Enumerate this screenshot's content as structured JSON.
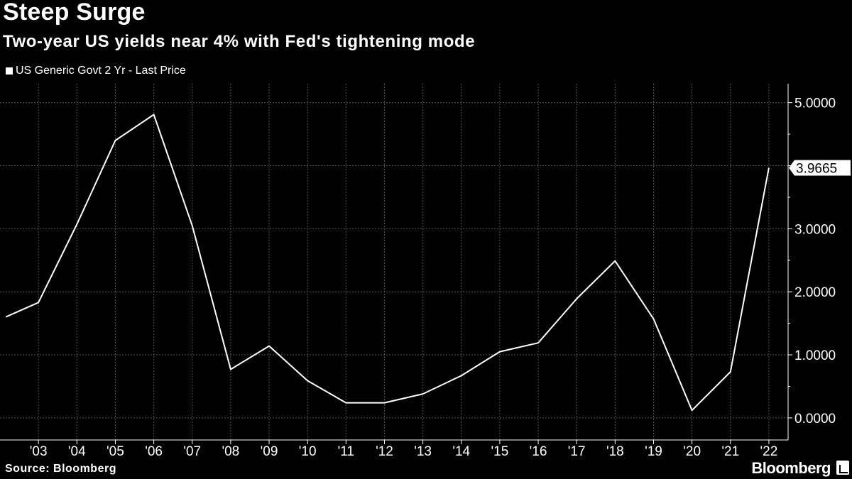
{
  "header": {
    "title": "Steep Surge",
    "subtitle": "Two-year US yields near 4% with Fed's tightening mode"
  },
  "legend": {
    "label": "US Generic Govt 2 Yr - Last Price"
  },
  "footer": {
    "source": "Source: Bloomberg",
    "brand": "Bloomberg"
  },
  "colors": {
    "background": "#000000",
    "line": "#ffffff",
    "grid": "#555555"
  },
  "chart_data": {
    "type": "line",
    "title": "Steep Surge",
    "subtitle": "Two-year US yields near 4% with Fed's tightening mode",
    "xlabel": "",
    "ylabel": "",
    "x": [
      2002.15,
      2003,
      2004,
      2005,
      2006,
      2007,
      2008,
      2009,
      2010,
      2011,
      2012,
      2013,
      2014,
      2015,
      2016,
      2017,
      2018,
      2019,
      2020,
      2021,
      2022
    ],
    "series": [
      {
        "name": "US Generic Govt 2 Yr - Last Price",
        "values": [
          1.6,
          1.83,
          3.07,
          4.4,
          4.81,
          3.05,
          0.77,
          1.14,
          0.59,
          0.24,
          0.24,
          0.38,
          0.67,
          1.05,
          1.19,
          1.89,
          2.49,
          1.57,
          0.12,
          0.73,
          3.9665
        ]
      }
    ],
    "last_value_label": "3.9665",
    "xticks": [
      2003,
      2004,
      2005,
      2006,
      2007,
      2008,
      2009,
      2010,
      2011,
      2012,
      2013,
      2014,
      2015,
      2016,
      2017,
      2018,
      2019,
      2020,
      2021,
      2022
    ],
    "xtick_labels": [
      "'03",
      "'04",
      "'05",
      "'06",
      "'07",
      "'08",
      "'09",
      "'10",
      "'11",
      "'12",
      "'13",
      "'14",
      "'15",
      "'16",
      "'17",
      "'18",
      "'19",
      "'20",
      "'21",
      "'22"
    ],
    "yticks": [
      0,
      1,
      2,
      3,
      4,
      5
    ],
    "ytick_labels": [
      "0.0000",
      "1.0000",
      "2.0000",
      "3.0000",
      "",
      "5.0000"
    ],
    "xlim": [
      2002,
      2022.5
    ],
    "ylim": [
      -0.35,
      5.3
    ],
    "grid": true,
    "legend_position": "top-left"
  }
}
